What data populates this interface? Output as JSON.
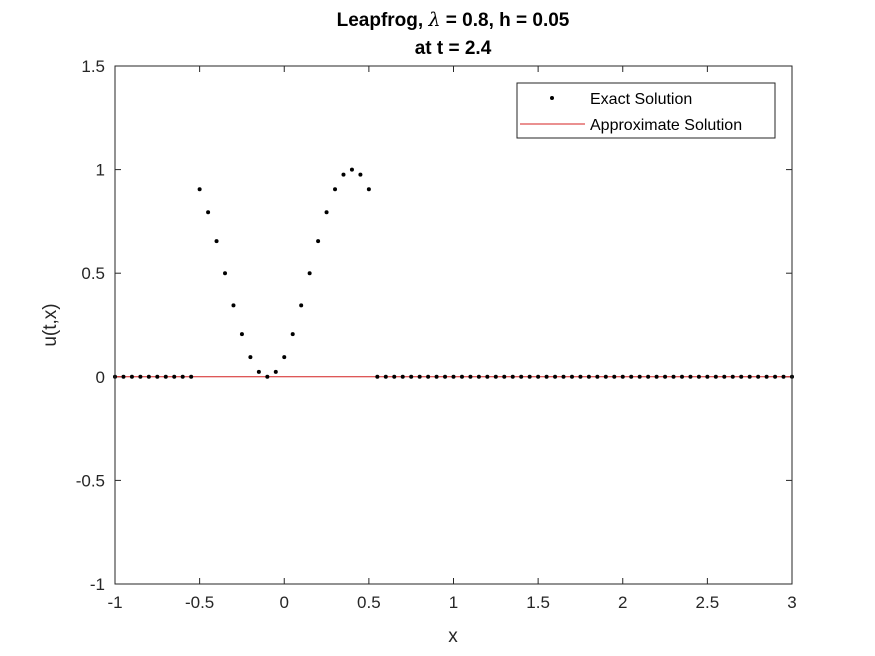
{
  "chart_data": {
    "type": "line",
    "title_line1_prefix": "Leapfrog, ",
    "title_line1_lambda": "λ",
    "title_line1_suffix": " = 0.8, h = 0.05",
    "title_line2": "at t = 2.4",
    "xlabel": "x",
    "ylabel": "u(t,x)",
    "xlim": [
      -1,
      3
    ],
    "ylim": [
      -1,
      1.5
    ],
    "xticks": [
      -1,
      -0.5,
      0,
      0.5,
      1,
      1.5,
      2,
      2.5,
      3
    ],
    "xtick_labels": [
      "-1",
      "-0.5",
      "0",
      "0.5",
      "1",
      "1.5",
      "2",
      "2.5",
      "3"
    ],
    "yticks": [
      -1,
      -0.5,
      0,
      0.5,
      1,
      1.5
    ],
    "ytick_labels": [
      "-1",
      "-0.5",
      "0",
      "0.5",
      "1",
      "1.5"
    ],
    "grid": false,
    "legend_placement": "top-right",
    "series": [
      {
        "name": "Exact Solution",
        "style": "dots",
        "color": "#000000",
        "x": [
          -1,
          -0.95,
          -0.9,
          -0.85,
          -0.8,
          -0.75,
          -0.7,
          -0.65,
          -0.6,
          -0.55,
          -0.5,
          -0.45,
          -0.4,
          -0.35,
          -0.3,
          -0.25,
          -0.2,
          -0.15,
          -0.1,
          -0.05,
          0,
          0.05,
          0.1,
          0.15,
          0.2,
          0.25,
          0.3,
          0.35,
          0.4,
          0.45,
          0.5,
          0.55,
          0.6,
          0.65,
          0.7,
          0.75,
          0.8,
          0.85,
          0.9,
          0.95,
          1,
          1.05,
          1.1,
          1.15,
          1.2,
          1.25,
          1.3,
          1.35,
          1.4,
          1.45,
          1.5,
          1.55,
          1.6,
          1.65,
          1.7,
          1.75,
          1.8,
          1.85,
          1.9,
          1.95,
          2,
          2.05,
          2.1,
          2.15,
          2.2,
          2.25,
          2.3,
          2.35,
          2.4,
          2.45,
          2.5,
          2.55,
          2.6,
          2.65,
          2.7,
          2.75,
          2.8,
          2.85,
          2.9,
          2.95,
          3
        ],
        "y": [
          0,
          0,
          0,
          0,
          0,
          0,
          0,
          0,
          0,
          0,
          0.905,
          0.794,
          0.655,
          0.5,
          0.345,
          0.206,
          0.095,
          0.024,
          0,
          0.024,
          0.095,
          0.206,
          0.345,
          0.5,
          0.655,
          0.794,
          0.905,
          0.976,
          1.0,
          0.976,
          0.905,
          0,
          0,
          0,
          0,
          0,
          0,
          0,
          0,
          0,
          0,
          0,
          0,
          0,
          0,
          0,
          0,
          0,
          0,
          0,
          0,
          0,
          0,
          0,
          0,
          0,
          0,
          0,
          0,
          0,
          0,
          0,
          0,
          0,
          0,
          0,
          0,
          0,
          0,
          0,
          0,
          0,
          0,
          0,
          0,
          0,
          0,
          0,
          0,
          0,
          0
        ]
      },
      {
        "name": "Approximate Solution",
        "style": "line",
        "color": "#d42020",
        "x": [
          -1,
          3
        ],
        "y": [
          0,
          0
        ]
      }
    ]
  }
}
